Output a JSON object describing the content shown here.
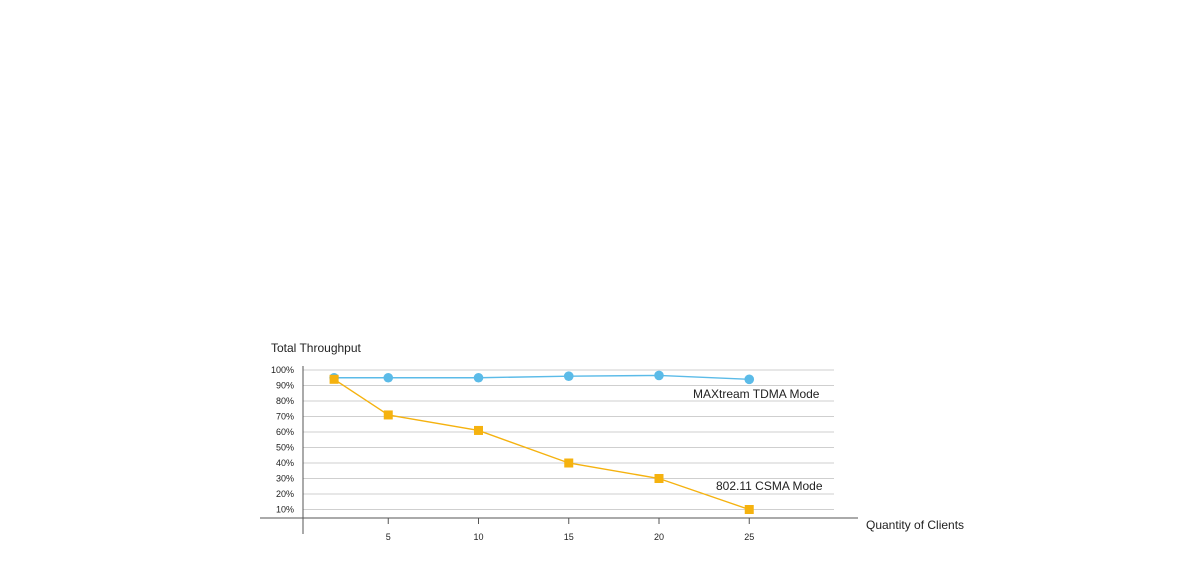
{
  "chart_data": {
    "type": "line",
    "title": "Total Throughput",
    "xlabel": "Quantity of Clients",
    "ylabel": "Total Throughput",
    "x_ticks": [
      "5",
      "10",
      "15",
      "20",
      "25"
    ],
    "y_ticks": [
      "100%",
      "90%",
      "80%",
      "70%",
      "60%",
      "50%",
      "40%",
      "30%",
      "20%",
      "10%"
    ],
    "xlim": [
      0,
      30
    ],
    "ylim": [
      0,
      100
    ],
    "grid": true,
    "series": [
      {
        "name": "MAXtream TDMA Mode",
        "marker": "circle",
        "color": "#5bbbe8",
        "x": [
          2,
          5,
          10,
          15,
          20,
          25
        ],
        "y": [
          95,
          95,
          95,
          96,
          96.5,
          94
        ]
      },
      {
        "name": "802.11 CSMA Mode",
        "marker": "square",
        "color": "#f5b20f",
        "x": [
          2,
          5,
          10,
          15,
          20,
          25
        ],
        "y": [
          94,
          71,
          61,
          40,
          30,
          10
        ]
      }
    ]
  }
}
